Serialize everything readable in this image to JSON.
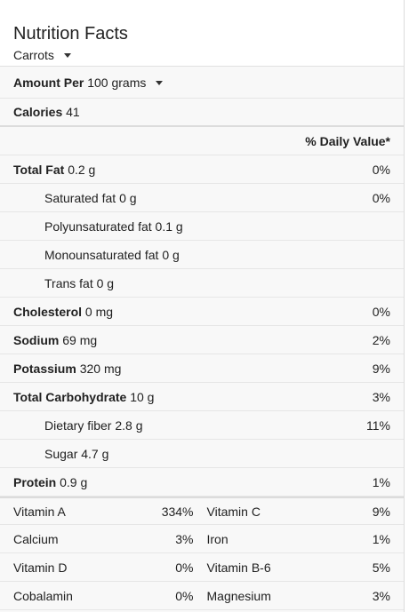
{
  "header": {
    "title": "Nutrition Facts",
    "food": "Carrots"
  },
  "amount": {
    "label": "Amount Per",
    "value": "100 grams"
  },
  "calories": {
    "label": "Calories",
    "value": "41"
  },
  "dv_header": "% Daily Value*",
  "nutrients": [
    {
      "label": "Total Fat",
      "value": "0.2 g",
      "pct": "0%"
    },
    {
      "label": "Saturated fat",
      "value": "0 g",
      "pct": "0%"
    },
    {
      "label": "Polyunsaturated fat",
      "value": "0.1 g",
      "pct": ""
    },
    {
      "label": "Monounsaturated fat",
      "value": "0 g",
      "pct": ""
    },
    {
      "label": "Trans fat",
      "value": "0 g",
      "pct": ""
    },
    {
      "label": "Cholesterol",
      "value": "0 mg",
      "pct": "0%"
    },
    {
      "label": "Sodium",
      "value": "69 mg",
      "pct": "2%"
    },
    {
      "label": "Potassium",
      "value": "320 mg",
      "pct": "9%"
    },
    {
      "label": "Total Carbohydrate",
      "value": "10 g",
      "pct": "3%"
    },
    {
      "label": "Dietary fiber",
      "value": "2.8 g",
      "pct": "11%"
    },
    {
      "label": "Sugar",
      "value": "4.7 g",
      "pct": ""
    },
    {
      "label": "Protein",
      "value": "0.9 g",
      "pct": "1%"
    }
  ],
  "vitamins": [
    {
      "left_name": "Vitamin A",
      "left_pct": "334%",
      "right_name": "Vitamin C",
      "right_pct": "9%"
    },
    {
      "left_name": "Calcium",
      "left_pct": "3%",
      "right_name": "Iron",
      "right_pct": "1%"
    },
    {
      "left_name": "Vitamin D",
      "left_pct": "0%",
      "right_name": "Vitamin B-6",
      "right_pct": "5%"
    },
    {
      "left_name": "Cobalamin",
      "left_pct": "0%",
      "right_name": "Magnesium",
      "right_pct": "3%"
    }
  ]
}
